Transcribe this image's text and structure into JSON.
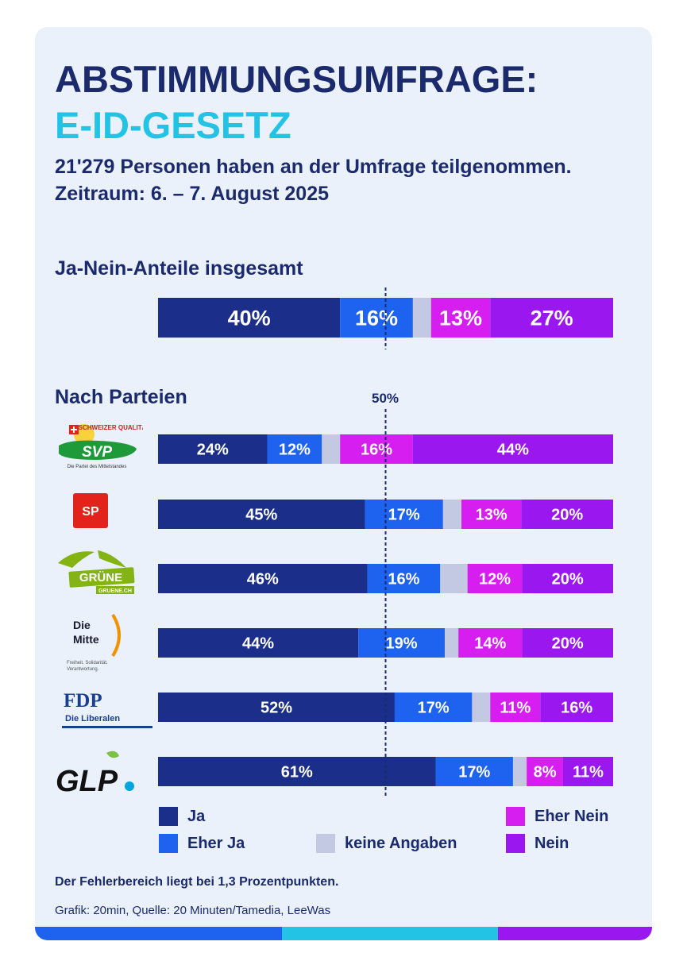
{
  "header": {
    "title_line1": "ABSTIMMUNGSUMFRAGE:",
    "title_line2": "E-ID-GESETZ",
    "participants": "21'279 Personen haben an der Umfrage teilgenommen.",
    "period": "Zeitraum:  6. – 7. August 2025"
  },
  "sections": {
    "overall": "Ja-Nein-Anteile insgesamt",
    "by_party": "Nach Parteien",
    "midline_label": "50%"
  },
  "colors": {
    "ja": "#1b2f8a",
    "eher_ja": "#1e63f0",
    "keine_angaben": "#c3c9e3",
    "eher_nein": "#d61ef0",
    "nein": "#9a17f0",
    "title_dark": "#1a2a6c",
    "title_accent": "#23c3e6"
  },
  "logos": {
    "svp": {
      "text": "SVP",
      "top_text": "SCHWEIZER QUALITÄT",
      "tagline": "Die Partei des Mittelstandes"
    },
    "sp": {
      "text": "SP"
    },
    "gruene": {
      "text": "GRÜNE",
      "url_text": "GRUENE.CH"
    },
    "mitte": {
      "line1": "Die",
      "line2": "Mitte",
      "tagline1": "Freiheit. Solidarität.",
      "tagline2": "Verantwortung."
    },
    "fdp": {
      "text": "FDP",
      "sub": "Die Liberalen"
    },
    "glp": {
      "text": "GLP"
    }
  },
  "chart_data": {
    "type": "bar",
    "orientation": "horizontal-stacked",
    "title": "Ja-Nein-Anteile insgesamt / Nach Parteien",
    "categories": [
      "Insgesamt",
      "SVP",
      "SP",
      "Grüne",
      "Die Mitte",
      "FDP",
      "GLP"
    ],
    "series": [
      {
        "name": "Ja",
        "values": [
          40,
          24,
          45,
          46,
          44,
          52,
          61
        ]
      },
      {
        "name": "Eher Ja",
        "values": [
          16,
          12,
          17,
          16,
          19,
          17,
          17
        ]
      },
      {
        "name": "keine Angaben",
        "values": [
          4,
          4,
          4,
          6,
          3,
          4,
          3
        ]
      },
      {
        "name": "Eher Nein",
        "values": [
          13,
          16,
          13,
          12,
          14,
          11,
          8
        ]
      },
      {
        "name": "Nein",
        "values": [
          27,
          44,
          20,
          20,
          20,
          16,
          11
        ]
      }
    ],
    "reference_line": 50,
    "xlim": [
      0,
      100
    ],
    "legend": [
      "Ja",
      "Eher Ja",
      "keine Angaben",
      "Eher Nein",
      "Nein"
    ]
  },
  "footer": {
    "note": "Der Fehlerbereich liegt bei 1,3 Prozentpunkten.",
    "source": "Grafik: 20min, Quelle: 20 Minuten/Tamedia, LeeWas"
  }
}
